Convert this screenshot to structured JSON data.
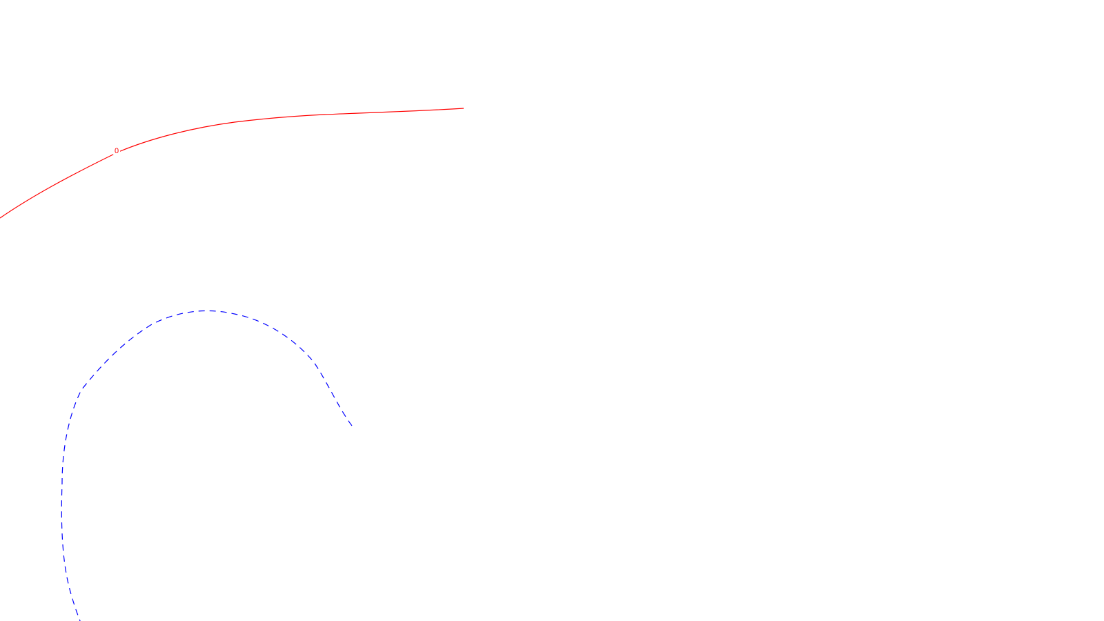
{
  "map": {
    "background": "#ffffff",
    "red_contour": {
      "color": "#ff0000",
      "style": "solid",
      "label": "0"
    },
    "blue_contour": {
      "color": "#0000ff",
      "style": "dashed"
    }
  }
}
